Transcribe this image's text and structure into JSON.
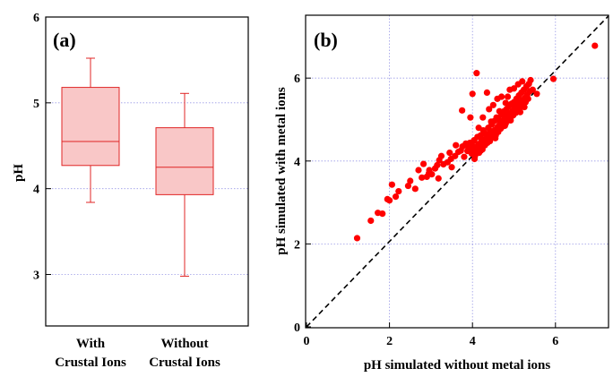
{
  "chart_data": [
    {
      "type": "box",
      "panel_label": "(a)",
      "ylabel": "pH",
      "ylim": [
        2.4,
        6
      ],
      "yticks": [
        3,
        4,
        5,
        6
      ],
      "categories": [
        {
          "line1": "With",
          "line2": "Crustal Ions"
        },
        {
          "line1": "Without",
          "line2": "Crustal Ions"
        }
      ],
      "boxes": [
        {
          "whisker_low": 3.84,
          "q1": 4.27,
          "median": 4.55,
          "q3": 5.18,
          "whisker_high": 5.52
        },
        {
          "whisker_low": 2.98,
          "q1": 3.93,
          "median": 4.25,
          "q3": 4.71,
          "whisker_high": 5.11
        }
      ],
      "grid": true,
      "colors": {
        "fill": "#f9c7c7",
        "stroke": "#e02424",
        "grid": "#9a9ae6"
      }
    },
    {
      "type": "scatter",
      "panel_label": "(b)",
      "xlabel": "pH simulated without metal ions",
      "ylabel": "pH simulated with metal ions",
      "xlim": [
        0,
        7.5
      ],
      "ylim": [
        0,
        7.5
      ],
      "xticks": [
        0,
        2,
        4,
        6
      ],
      "yticks": [
        0,
        2,
        4,
        6
      ],
      "grid": true,
      "reference_line": {
        "style": "dashed",
        "from": [
          0,
          0
        ],
        "to": [
          7.5,
          7.5
        ]
      },
      "colors": {
        "points": "#ff0000",
        "grid": "#9a9ae6"
      },
      "points": [
        [
          1.22,
          2.14
        ],
        [
          1.55,
          2.56
        ],
        [
          1.72,
          2.75
        ],
        [
          1.83,
          2.73
        ],
        [
          1.95,
          3.08
        ],
        [
          2.06,
          3.43
        ],
        [
          2.0,
          3.05
        ],
        [
          2.15,
          3.14
        ],
        [
          2.22,
          3.27
        ],
        [
          2.45,
          3.4
        ],
        [
          2.5,
          3.52
        ],
        [
          2.62,
          3.33
        ],
        [
          2.78,
          3.6
        ],
        [
          2.82,
          3.93
        ],
        [
          2.9,
          3.62
        ],
        [
          2.96,
          3.78
        ],
        [
          3.02,
          3.68
        ],
        [
          3.1,
          3.82
        ],
        [
          3.18,
          3.58
        ],
        [
          3.2,
          4.02
        ],
        [
          3.3,
          3.92
        ],
        [
          3.4,
          3.97
        ],
        [
          3.48,
          4.05
        ],
        [
          3.5,
          3.85
        ],
        [
          3.58,
          4.12
        ],
        [
          3.66,
          4.22
        ],
        [
          3.72,
          4.25
        ],
        [
          3.76,
          4.35
        ],
        [
          3.8,
          4.1
        ],
        [
          3.84,
          4.42
        ],
        [
          3.88,
          4.24
        ],
        [
          3.9,
          4.33
        ],
        [
          3.94,
          4.44
        ],
        [
          3.98,
          4.18
        ],
        [
          4.0,
          4.37
        ],
        [
          4.02,
          4.27
        ],
        [
          4.04,
          4.5
        ],
        [
          4.06,
          4.12
        ],
        [
          4.08,
          4.32
        ],
        [
          4.1,
          4.22
        ],
        [
          4.12,
          4.58
        ],
        [
          4.14,
          4.41
        ],
        [
          4.16,
          4.2
        ],
        [
          4.18,
          4.36
        ],
        [
          4.2,
          4.62
        ],
        [
          4.22,
          4.48
        ],
        [
          4.24,
          4.28
        ],
        [
          4.26,
          4.74
        ],
        [
          4.28,
          4.52
        ],
        [
          4.3,
          4.38
        ],
        [
          4.32,
          4.66
        ],
        [
          4.34,
          4.55
        ],
        [
          4.36,
          4.44
        ],
        [
          4.38,
          4.8
        ],
        [
          4.4,
          4.6
        ],
        [
          4.42,
          4.48
        ],
        [
          4.44,
          4.72
        ],
        [
          4.46,
          4.88
        ],
        [
          4.48,
          4.58
        ],
        [
          4.5,
          4.65
        ],
        [
          4.52,
          4.96
        ],
        [
          4.54,
          4.75
        ],
        [
          4.56,
          4.62
        ],
        [
          4.58,
          5.05
        ],
        [
          4.6,
          4.82
        ],
        [
          4.62,
          4.7
        ],
        [
          4.64,
          5.0
        ],
        [
          4.66,
          4.9
        ],
        [
          4.68,
          4.78
        ],
        [
          4.7,
          5.12
        ],
        [
          4.72,
          4.95
        ],
        [
          4.74,
          4.84
        ],
        [
          4.76,
          5.2
        ],
        [
          4.78,
          5.02
        ],
        [
          4.8,
          4.9
        ],
        [
          4.82,
          5.25
        ],
        [
          4.84,
          5.1
        ],
        [
          4.86,
          4.98
        ],
        [
          4.88,
          5.32
        ],
        [
          4.9,
          5.15
        ],
        [
          4.92,
          5.05
        ],
        [
          4.94,
          5.38
        ],
        [
          4.96,
          5.2
        ],
        [
          4.98,
          5.1
        ],
        [
          5.0,
          5.42
        ],
        [
          5.02,
          5.28
        ],
        [
          5.04,
          5.16
        ],
        [
          5.06,
          5.5
        ],
        [
          5.08,
          5.33
        ],
        [
          5.1,
          5.22
        ],
        [
          5.12,
          5.58
        ],
        [
          5.14,
          5.4
        ],
        [
          5.16,
          5.3
        ],
        [
          5.18,
          5.65
        ],
        [
          5.2,
          5.46
        ],
        [
          5.22,
          5.36
        ],
        [
          5.24,
          5.72
        ],
        [
          5.26,
          5.52
        ],
        [
          5.28,
          5.42
        ],
        [
          5.3,
          5.8
        ],
        [
          5.32,
          5.6
        ],
        [
          5.34,
          5.5
        ],
        [
          5.36,
          5.86
        ],
        [
          5.38,
          5.68
        ],
        [
          5.4,
          5.95
        ],
        [
          5.45,
          5.72
        ],
        [
          5.55,
          5.62
        ],
        [
          5.1,
          5.85
        ],
        [
          4.9,
          5.72
        ],
        [
          4.7,
          5.55
        ],
        [
          4.4,
          5.25
        ],
        [
          4.25,
          5.05
        ],
        [
          4.1,
          6.12
        ],
        [
          4.0,
          5.62
        ],
        [
          4.35,
          5.65
        ],
        [
          4.6,
          5.5
        ],
        [
          4.8,
          5.4
        ],
        [
          3.75,
          5.22
        ],
        [
          3.95,
          5.05
        ],
        [
          4.5,
          5.35
        ],
        [
          5.0,
          5.75
        ],
        [
          5.2,
          5.92
        ],
        [
          4.15,
          4.8
        ],
        [
          4.45,
          4.95
        ],
        [
          4.65,
          5.2
        ],
        [
          4.85,
          5.55
        ],
        [
          3.6,
          4.38
        ],
        [
          3.45,
          4.2
        ],
        [
          3.25,
          4.12
        ],
        [
          3.15,
          3.9
        ],
        [
          2.95,
          3.7
        ],
        [
          2.7,
          3.78
        ],
        [
          4.05,
          4.05
        ],
        [
          4.2,
          4.25
        ],
        [
          4.55,
          4.55
        ],
        [
          5.95,
          5.98
        ],
        [
          6.95,
          6.78
        ],
        [
          4.78,
          4.85
        ],
        [
          4.92,
          4.98
        ],
        [
          5.15,
          5.18
        ],
        [
          5.25,
          5.3
        ]
      ]
    }
  ]
}
